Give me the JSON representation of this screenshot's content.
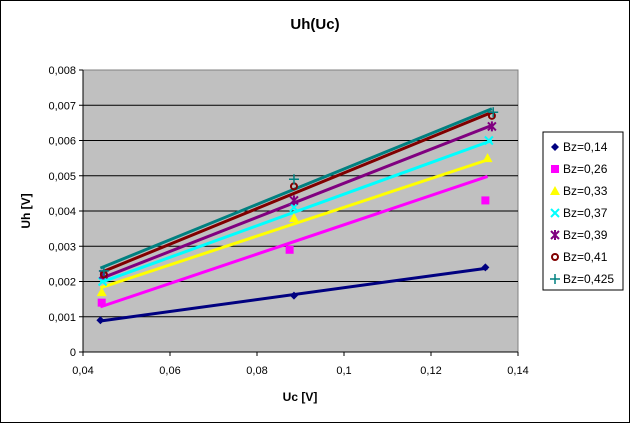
{
  "chart_data": {
    "type": "scatter",
    "title": "Uh(Uc)",
    "xlabel": "Uc [V]",
    "ylabel": "Uh [V]",
    "xlim": [
      0.04,
      0.14
    ],
    "ylim": [
      0,
      0.008
    ],
    "x_ticks": [
      0.04,
      0.06,
      0.08,
      0.1,
      0.12,
      0.14
    ],
    "x_tick_labels": [
      "0,04",
      "0,06",
      "0,08",
      "0,1",
      "0,12",
      "0,14"
    ],
    "y_ticks": [
      0,
      0.001,
      0.002,
      0.003,
      0.004,
      0.005,
      0.006,
      0.007,
      0.008
    ],
    "y_tick_labels": [
      "0",
      "0,001",
      "0,002",
      "0,003",
      "0,004",
      "0,005",
      "0,006",
      "0,007",
      "0,008"
    ],
    "grid": "horizontal",
    "legend_position": "right",
    "series": [
      {
        "name": "Bz=0,14",
        "color": "#000080",
        "marker": "diamond",
        "points": [
          [
            0.044,
            0.0009
          ],
          [
            0.0885,
            0.0016
          ],
          [
            0.1325,
            0.0024
          ]
        ],
        "trend": [
          [
            0.044,
            0.00088
          ],
          [
            0.133,
            0.00238
          ]
        ]
      },
      {
        "name": "Bz=0,26",
        "color": "#FF00FF",
        "marker": "square",
        "points": [
          [
            0.0443,
            0.0014
          ],
          [
            0.0875,
            0.0029
          ],
          [
            0.1325,
            0.0043
          ]
        ],
        "trend": [
          [
            0.044,
            0.00128
          ],
          [
            0.133,
            0.00498
          ]
        ]
      },
      {
        "name": "Bz=0,33",
        "color": "#FFFF00",
        "marker": "triangle",
        "points": [
          [
            0.0443,
            0.0017
          ],
          [
            0.0885,
            0.0038
          ],
          [
            0.133,
            0.0055
          ]
        ],
        "trend": [
          [
            0.044,
            0.00182
          ],
          [
            0.133,
            0.00545
          ]
        ]
      },
      {
        "name": "Bz=0,37",
        "color": "#00FFFF",
        "marker": "x",
        "points": [
          [
            0.0445,
            0.002
          ],
          [
            0.0885,
            0.0041
          ],
          [
            0.1333,
            0.006
          ]
        ],
        "trend": [
          [
            0.044,
            0.00197
          ],
          [
            0.134,
            0.006
          ]
        ]
      },
      {
        "name": "Bz=0,39",
        "color": "#800080",
        "marker": "star",
        "points": [
          [
            0.0447,
            0.0022
          ],
          [
            0.0885,
            0.0043
          ],
          [
            0.134,
            0.0064
          ]
        ],
        "trend": [
          [
            0.044,
            0.00208
          ],
          [
            0.134,
            0.00643
          ]
        ]
      },
      {
        "name": "Bz=0,41",
        "color": "#800000",
        "marker": "circle",
        "points": [
          [
            0.0448,
            0.0022
          ],
          [
            0.0885,
            0.0047
          ],
          [
            0.134,
            0.0067
          ]
        ],
        "trend": [
          [
            0.044,
            0.00225
          ],
          [
            0.134,
            0.0068
          ]
        ]
      },
      {
        "name": "Bz=0,425",
        "color": "#008080",
        "marker": "plus",
        "points": [
          [
            0.0448,
            0.0023
          ],
          [
            0.0885,
            0.0049
          ],
          [
            0.1343,
            0.0068
          ]
        ],
        "trend": [
          [
            0.044,
            0.00238
          ],
          [
            0.134,
            0.0069
          ]
        ]
      }
    ]
  }
}
